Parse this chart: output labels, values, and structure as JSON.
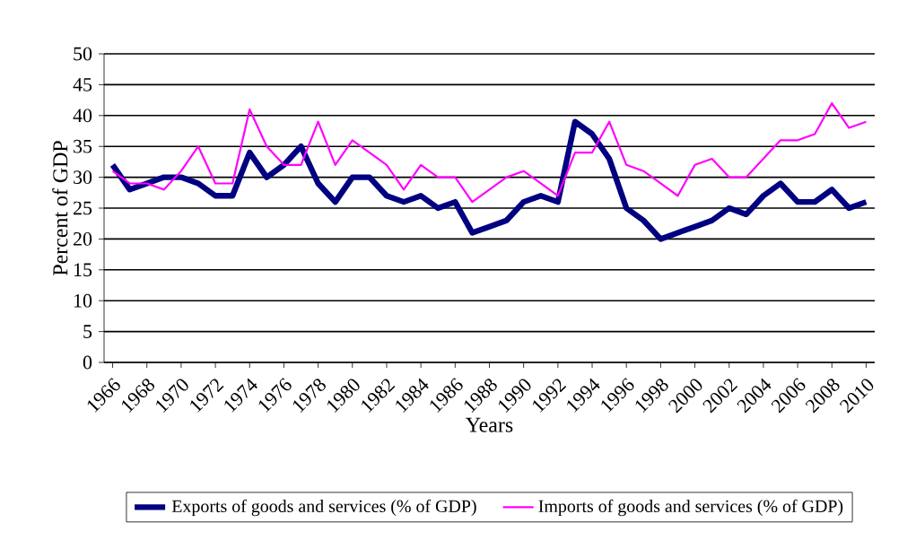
{
  "chart_data": {
    "type": "line",
    "xlabel": "Years",
    "ylabel": "Percent of GDP",
    "x": [
      1966,
      1967,
      1968,
      1969,
      1970,
      1971,
      1972,
      1973,
      1974,
      1975,
      1976,
      1977,
      1978,
      1979,
      1980,
      1981,
      1982,
      1983,
      1984,
      1985,
      1986,
      1987,
      1988,
      1989,
      1990,
      1991,
      1992,
      1993,
      1994,
      1995,
      1996,
      1997,
      1998,
      1999,
      2000,
      2001,
      2002,
      2003,
      2004,
      2005,
      2006,
      2007,
      2008,
      2009,
      2010
    ],
    "series": [
      {
        "name": "Exports of goods and services (% of GDP)",
        "color": "#000080",
        "values": [
          32,
          28,
          29,
          30,
          30,
          29,
          27,
          27,
          34,
          30,
          32,
          35,
          29,
          26,
          30,
          30,
          27,
          26,
          27,
          25,
          26,
          21,
          22,
          23,
          26,
          27,
          26,
          39,
          37,
          33,
          25,
          23,
          20,
          21,
          22,
          23,
          25,
          24,
          27,
          29,
          26,
          26,
          28,
          25,
          26
        ]
      },
      {
        "name": "Imports of goods and services (% of GDP)",
        "color": "#ff00ff",
        "values": [
          31,
          29,
          29,
          28,
          31,
          35,
          29,
          29,
          41,
          35,
          32,
          32,
          39,
          32,
          36,
          34,
          32,
          28,
          32,
          30,
          30,
          26,
          28,
          30,
          31,
          29,
          27,
          34,
          34,
          39,
          32,
          31,
          29,
          27,
          32,
          33,
          30,
          30,
          33,
          36,
          36,
          37,
          42,
          38,
          39
        ]
      }
    ],
    "xlim": [
      1965.5,
      2010.5
    ],
    "ylim": [
      0,
      50
    ],
    "xticks": [
      1966,
      1968,
      1970,
      1972,
      1974,
      1976,
      1978,
      1980,
      1982,
      1984,
      1986,
      1988,
      1990,
      1992,
      1994,
      1996,
      1998,
      2000,
      2002,
      2004,
      2006,
      2008,
      2010
    ],
    "yticks": [
      0,
      5,
      10,
      15,
      20,
      25,
      30,
      35,
      40,
      45,
      50
    ],
    "grid": "y",
    "legend": "bottom",
    "marker": "none",
    "line_style": "solid"
  }
}
